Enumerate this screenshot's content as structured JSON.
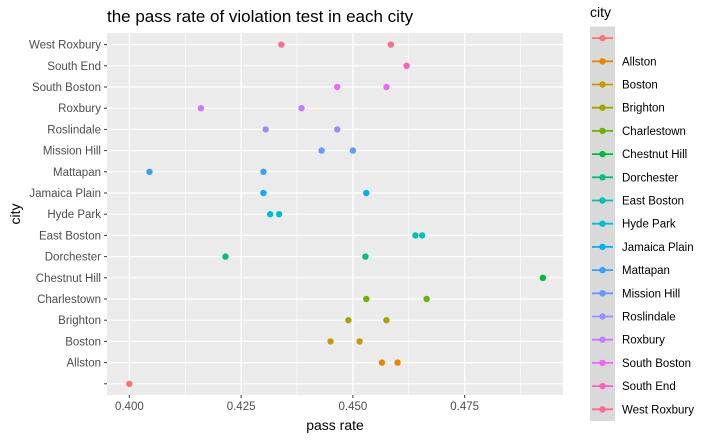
{
  "chart_data": {
    "type": "scatter",
    "title": "the pass rate of violation test in each city",
    "xlabel": "pass rate",
    "ylabel": "city",
    "xlim": [
      0.395,
      0.497
    ],
    "x_ticks": [
      0.4,
      0.425,
      0.45,
      0.475
    ],
    "x_tick_labels": [
      "0.400",
      "0.425",
      "0.450",
      "0.475"
    ],
    "categories": [
      "",
      "Allston",
      "Boston",
      "Brighton",
      "Charlestown",
      "Chestnut Hill",
      "Dorchester",
      "East Boston",
      "Hyde Park",
      "Jamaica Plain",
      "Mattapan",
      "Mission Hill",
      "Roslindale",
      "Roxbury",
      "South Boston",
      "South End",
      "West Roxbury"
    ],
    "legend_title": "city",
    "legend_position": "right",
    "grid": true,
    "panel_background": "#ebebeb",
    "grid_color": "#ffffff",
    "legend_key_background": "#d9d9d9",
    "series": [
      {
        "name": "",
        "color": "#F8766D",
        "values": [
          0.4
        ]
      },
      {
        "name": "Allston",
        "color": "#E58700",
        "values": [
          0.4565,
          0.46
        ]
      },
      {
        "name": "Boston",
        "color": "#C99800",
        "values": [
          0.445,
          0.4515
        ]
      },
      {
        "name": "Brighton",
        "color": "#A3A500",
        "values": [
          0.449,
          0.4575
        ]
      },
      {
        "name": "Charlestown",
        "color": "#6BB100",
        "values": [
          0.453,
          0.4665
        ]
      },
      {
        "name": "Chestnut Hill",
        "color": "#00BA38",
        "values": [
          0.4925
        ]
      },
      {
        "name": "Dorchester",
        "color": "#00BF7D",
        "values": [
          0.4215,
          0.4528
        ]
      },
      {
        "name": "East Boston",
        "color": "#00C0AF",
        "values": [
          0.464,
          0.4655
        ]
      },
      {
        "name": "Hyde Park",
        "color": "#00BCD8",
        "values": [
          0.4315,
          0.4335
        ]
      },
      {
        "name": "Jamaica Plain",
        "color": "#00B0F6",
        "values": [
          0.43,
          0.453
        ]
      },
      {
        "name": "Mattapan",
        "color": "#35A2FF",
        "values": [
          0.4045,
          0.43
        ]
      },
      {
        "name": "Mission Hill",
        "color": "#619CFF",
        "values": [
          0.443,
          0.45
        ]
      },
      {
        "name": "Roslindale",
        "color": "#9590FF",
        "values": [
          0.4305,
          0.4465
        ]
      },
      {
        "name": "Roxbury",
        "color": "#C77CFF",
        "values": [
          0.416,
          0.4385
        ]
      },
      {
        "name": "South Boston",
        "color": "#E76BF3",
        "values": [
          0.4465,
          0.4575
        ]
      },
      {
        "name": "South End",
        "color": "#FF62BC",
        "values": [
          0.462
        ]
      },
      {
        "name": "West Roxbury",
        "color": "#FF6C91",
        "values": [
          0.434,
          0.4585
        ]
      }
    ]
  }
}
